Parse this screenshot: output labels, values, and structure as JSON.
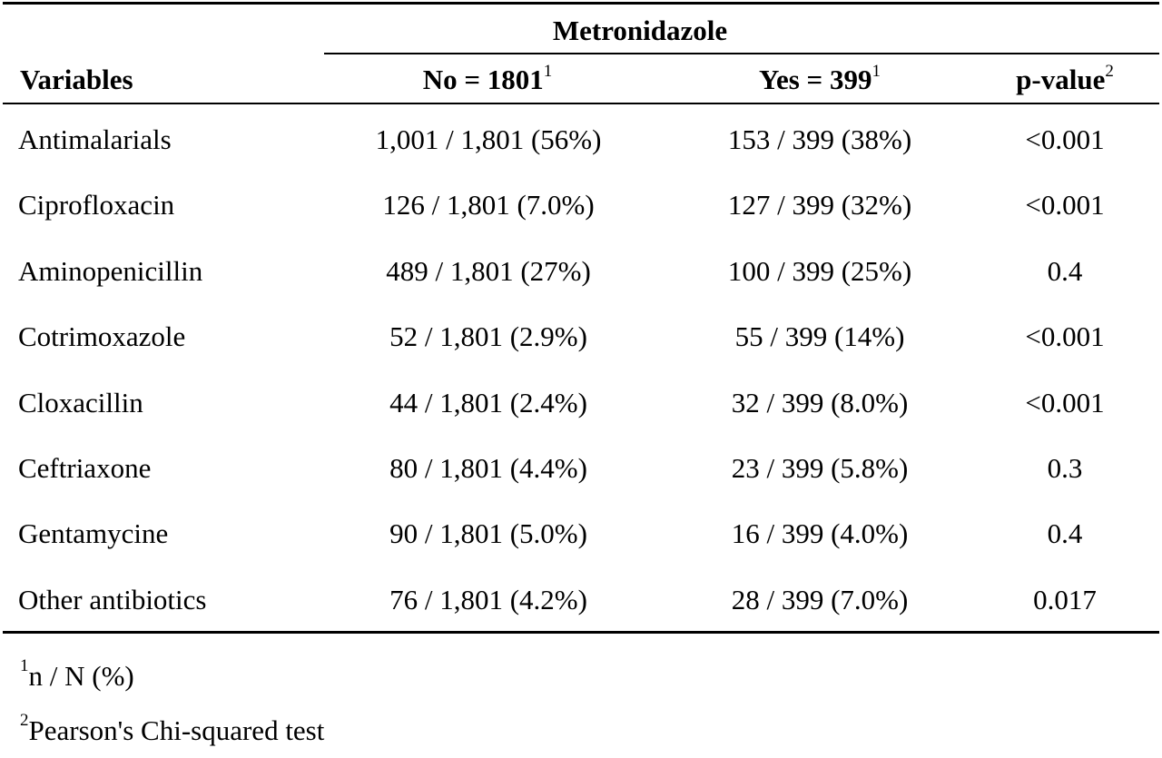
{
  "table": {
    "group_header": "Metronidazole",
    "headers": {
      "variables": "Variables",
      "no": "No = 1801",
      "no_sup": "1",
      "yes": "Yes = 399",
      "yes_sup": "1",
      "pvalue": "p-value",
      "pvalue_sup": "2"
    },
    "rows": [
      {
        "variable": "Antimalarials",
        "no": "1,001 / 1,801 (56%)",
        "yes": "153 / 399 (38%)",
        "p": "<0.001"
      },
      {
        "variable": "Ciprofloxacin",
        "no": "126 / 1,801 (7.0%)",
        "yes": "127 / 399 (32%)",
        "p": "<0.001"
      },
      {
        "variable": "Aminopenicillin",
        "no": "489 / 1,801 (27%)",
        "yes": "100 / 399 (25%)",
        "p": "0.4"
      },
      {
        "variable": "Cotrimoxazole",
        "no": "52 / 1,801 (2.9%)",
        "yes": "55 / 399 (14%)",
        "p": "<0.001"
      },
      {
        "variable": "Cloxacillin",
        "no": "44 / 1,801 (2.4%)",
        "yes": "32 / 399 (8.0%)",
        "p": "<0.001"
      },
      {
        "variable": "Ceftriaxone",
        "no": "80 / 1,801 (4.4%)",
        "yes": "23 / 399 (5.8%)",
        "p": "0.3"
      },
      {
        "variable": "Gentamycine",
        "no": "90 / 1,801 (5.0%)",
        "yes": "16 / 399 (4.0%)",
        "p": "0.4"
      },
      {
        "variable": "Other antibiotics",
        "no": "76 / 1,801 (4.2%)",
        "yes": "28 / 399 (7.0%)",
        "p": "0.017"
      }
    ]
  },
  "footnotes": [
    {
      "mark": "1",
      "text": "n / N (%)"
    },
    {
      "mark": "2",
      "text": "Pearson's Chi-squared test"
    }
  ]
}
